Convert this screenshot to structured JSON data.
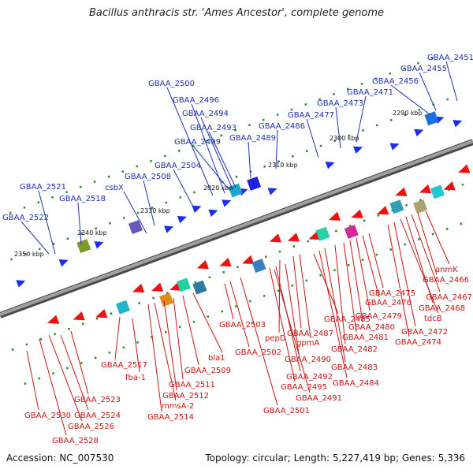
{
  "title": "Bacillus anthracis str. 'Ames Ancestor', complete genome",
  "footer": {
    "accession": "Accession: NC_007530",
    "summary": "Topology: circular; Length: 5,227,419 bp; Genes: 5,336"
  },
  "colors": {
    "backbone": "#7a7a7a",
    "forward_label": "#1f2fb5",
    "reverse_label": "#c81414",
    "tick": "#2a8a2a"
  },
  "kbp_labels": [
    "2290 kbp",
    "2300 kbp",
    "2310 kbp",
    "2320 kbp",
    "2330 kbp",
    "2340 kbp",
    "2350 kbp"
  ],
  "forward_genes": [
    "GBAA_2451",
    "GBAA_2455",
    "GBAA_2456",
    "GBAA_2471",
    "GBAA_2473",
    "GBAA_2477",
    "GBAA_2486",
    "GBAA_2489",
    "GBAA_2500",
    "GBAA_2496",
    "GBAA_2494",
    "GBAA_2493",
    "GBAA_2499",
    "GBAA_2504",
    "GBAA_2508",
    "csbX",
    "GBAA_2518",
    "GBAA_2521",
    "GBAA_2522"
  ],
  "reverse_genes": [
    "anmK",
    "GBAA_2466",
    "GBAA_2467",
    "GBAA_2468",
    "tdcB",
    "GBAA_2472",
    "GBAA_2474",
    "GBAA_2475",
    "GBAA_2476",
    "GBAA_2479",
    "GBAA_2480",
    "GBAA_2481",
    "GBAA_2482",
    "GBAA_2483",
    "GBAA_2484",
    "GBAA_2485",
    "GBAA_2487",
    "gpmA",
    "pepD",
    "GBAA_2490",
    "GBAA_2492",
    "GBAA_2495",
    "GBAA_2491",
    "GBAA_2501",
    "GBAA_2502",
    "GBAA_2503",
    "bla1",
    "GBAA_2509",
    "GBAA_2511",
    "GBAA_2512",
    "mmsA-2",
    "GBAA_2514",
    "GBAA_2517",
    "fba-1",
    "GBAA_2523",
    "GBAA_2524",
    "GBAA_2526",
    "GBAA_2528",
    "GBAA_2530"
  ]
}
